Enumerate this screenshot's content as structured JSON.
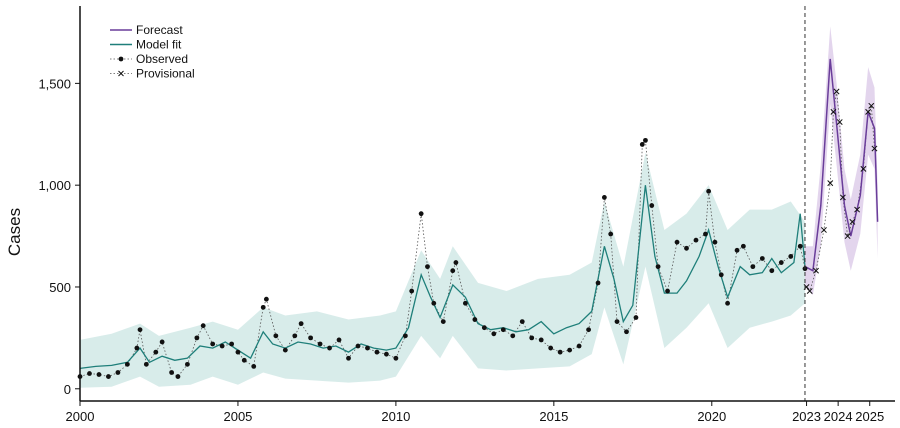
{
  "chart_data": {
    "type": "line",
    "title": "",
    "xlabel": "",
    "ylabel": "Cases",
    "xlim": [
      2000,
      2025.8
    ],
    "ylim": [
      -60,
      1880
    ],
    "x_ticks": [
      2000,
      2005,
      2010,
      2015,
      2020,
      2023,
      2024,
      2025
    ],
    "x_tick_labels": [
      "2000",
      "2005",
      "2010",
      "2015",
      "2020",
      "2023",
      "2024",
      "2025"
    ],
    "y_ticks": [
      0,
      500,
      1000,
      1500
    ],
    "y_tick_labels": [
      "0",
      "500",
      "1,000",
      "1,500"
    ],
    "grid": false,
    "legend_position": "top-left",
    "forecast_start": 2022.95,
    "colors": {
      "model_fit": "#1f7f7a",
      "model_band": "#d6ebe9",
      "forecast": "#6a3d9a",
      "forecast_band": "#e2d3ec",
      "observed": "#111111"
    },
    "legend": [
      {
        "label": "Forecast",
        "key": "forecast"
      },
      {
        "label": "Model fit",
        "key": "model_fit"
      },
      {
        "label": "Observed",
        "key": "observed"
      },
      {
        "label": "Provisional",
        "key": "provisional"
      }
    ],
    "series": [
      {
        "name": "Model fit",
        "points": [
          [
            2000.0,
            100
          ],
          [
            2000.5,
            110
          ],
          [
            2001.0,
            115
          ],
          [
            2001.5,
            130
          ],
          [
            2001.9,
            200
          ],
          [
            2002.2,
            130
          ],
          [
            2002.6,
            160
          ],
          [
            2003.0,
            140
          ],
          [
            2003.4,
            150
          ],
          [
            2003.8,
            210
          ],
          [
            2004.2,
            200
          ],
          [
            2004.6,
            230
          ],
          [
            2005.0,
            190
          ],
          [
            2005.4,
            150
          ],
          [
            2005.8,
            280
          ],
          [
            2006.1,
            220
          ],
          [
            2006.5,
            200
          ],
          [
            2006.9,
            230
          ],
          [
            2007.3,
            220
          ],
          [
            2007.7,
            200
          ],
          [
            2008.1,
            210
          ],
          [
            2008.5,
            180
          ],
          [
            2008.9,
            220
          ],
          [
            2009.3,
            200
          ],
          [
            2009.7,
            190
          ],
          [
            2010.0,
            200
          ],
          [
            2010.4,
            300
          ],
          [
            2010.8,
            560
          ],
          [
            2011.1,
            450
          ],
          [
            2011.4,
            350
          ],
          [
            2011.8,
            510
          ],
          [
            2012.2,
            450
          ],
          [
            2012.6,
            320
          ],
          [
            2013.0,
            290
          ],
          [
            2013.4,
            300
          ],
          [
            2013.8,
            280
          ],
          [
            2014.2,
            290
          ],
          [
            2014.6,
            330
          ],
          [
            2015.0,
            270
          ],
          [
            2015.4,
            300
          ],
          [
            2015.8,
            320
          ],
          [
            2016.2,
            380
          ],
          [
            2016.6,
            700
          ],
          [
            2016.9,
            540
          ],
          [
            2017.2,
            330
          ],
          [
            2017.5,
            410
          ],
          [
            2017.9,
            1000
          ],
          [
            2018.2,
            650
          ],
          [
            2018.5,
            470
          ],
          [
            2018.9,
            470
          ],
          [
            2019.2,
            530
          ],
          [
            2019.6,
            650
          ],
          [
            2019.9,
            780
          ],
          [
            2020.2,
            600
          ],
          [
            2020.5,
            450
          ],
          [
            2020.9,
            600
          ],
          [
            2021.2,
            560
          ],
          [
            2021.6,
            570
          ],
          [
            2021.9,
            640
          ],
          [
            2022.2,
            570
          ],
          [
            2022.6,
            620
          ],
          [
            2022.8,
            860
          ],
          [
            2022.95,
            600
          ]
        ]
      },
      {
        "name": "Observed",
        "points": [
          [
            2000.0,
            60
          ],
          [
            2000.3,
            75
          ],
          [
            2000.6,
            70
          ],
          [
            2000.9,
            60
          ],
          [
            2001.2,
            80
          ],
          [
            2001.5,
            120
          ],
          [
            2001.8,
            200
          ],
          [
            2001.9,
            290
          ],
          [
            2002.1,
            120
          ],
          [
            2002.4,
            180
          ],
          [
            2002.6,
            230
          ],
          [
            2002.9,
            80
          ],
          [
            2003.1,
            60
          ],
          [
            2003.4,
            120
          ],
          [
            2003.7,
            250
          ],
          [
            2003.9,
            310
          ],
          [
            2004.2,
            220
          ],
          [
            2004.5,
            210
          ],
          [
            2004.8,
            220
          ],
          [
            2005.0,
            180
          ],
          [
            2005.2,
            140
          ],
          [
            2005.5,
            110
          ],
          [
            2005.8,
            400
          ],
          [
            2005.9,
            440
          ],
          [
            2006.2,
            260
          ],
          [
            2006.5,
            190
          ],
          [
            2006.8,
            260
          ],
          [
            2007.0,
            320
          ],
          [
            2007.3,
            250
          ],
          [
            2007.6,
            220
          ],
          [
            2007.9,
            200
          ],
          [
            2008.2,
            240
          ],
          [
            2008.5,
            150
          ],
          [
            2008.8,
            210
          ],
          [
            2009.1,
            200
          ],
          [
            2009.4,
            180
          ],
          [
            2009.7,
            170
          ],
          [
            2010.0,
            150
          ],
          [
            2010.3,
            260
          ],
          [
            2010.5,
            480
          ],
          [
            2010.8,
            860
          ],
          [
            2011.0,
            600
          ],
          [
            2011.2,
            420
          ],
          [
            2011.5,
            330
          ],
          [
            2011.8,
            580
          ],
          [
            2011.9,
            620
          ],
          [
            2012.2,
            420
          ],
          [
            2012.5,
            340
          ],
          [
            2012.8,
            300
          ],
          [
            2013.1,
            270
          ],
          [
            2013.4,
            290
          ],
          [
            2013.7,
            260
          ],
          [
            2014.0,
            330
          ],
          [
            2014.3,
            250
          ],
          [
            2014.6,
            240
          ],
          [
            2014.9,
            200
          ],
          [
            2015.2,
            180
          ],
          [
            2015.5,
            190
          ],
          [
            2015.8,
            210
          ],
          [
            2016.1,
            290
          ],
          [
            2016.4,
            520
          ],
          [
            2016.6,
            940
          ],
          [
            2016.8,
            760
          ],
          [
            2017.0,
            330
          ],
          [
            2017.3,
            280
          ],
          [
            2017.6,
            350
          ],
          [
            2017.8,
            1200
          ],
          [
            2017.9,
            1220
          ],
          [
            2018.1,
            900
          ],
          [
            2018.3,
            600
          ],
          [
            2018.6,
            480
          ],
          [
            2018.9,
            720
          ],
          [
            2019.2,
            690
          ],
          [
            2019.5,
            730
          ],
          [
            2019.8,
            760
          ],
          [
            2019.9,
            970
          ],
          [
            2020.1,
            720
          ],
          [
            2020.3,
            560
          ],
          [
            2020.5,
            420
          ],
          [
            2020.8,
            680
          ],
          [
            2021.0,
            700
          ],
          [
            2021.3,
            600
          ],
          [
            2021.6,
            640
          ],
          [
            2021.9,
            580
          ],
          [
            2022.2,
            620
          ],
          [
            2022.5,
            650
          ],
          [
            2022.8,
            700
          ],
          [
            2022.95,
            590
          ]
        ]
      },
      {
        "name": "Forecast",
        "points": [
          [
            2022.95,
            600
          ],
          [
            2023.2,
            580
          ],
          [
            2023.45,
            900
          ],
          [
            2023.75,
            1620
          ],
          [
            2023.95,
            1300
          ],
          [
            2024.2,
            900
          ],
          [
            2024.4,
            750
          ],
          [
            2024.7,
            950
          ],
          [
            2024.95,
            1360
          ],
          [
            2025.15,
            1280
          ],
          [
            2025.25,
            820
          ]
        ]
      },
      {
        "name": "Provisional",
        "points": [
          [
            2023.0,
            500
          ],
          [
            2023.1,
            480
          ],
          [
            2023.3,
            580
          ],
          [
            2023.55,
            780
          ],
          [
            2023.75,
            1010
          ],
          [
            2023.85,
            1360
          ],
          [
            2023.95,
            1460
          ],
          [
            2024.05,
            1310
          ],
          [
            2024.15,
            940
          ],
          [
            2024.3,
            750
          ],
          [
            2024.45,
            820
          ],
          [
            2024.6,
            880
          ],
          [
            2024.8,
            1080
          ],
          [
            2024.95,
            1360
          ],
          [
            2025.05,
            1390
          ],
          [
            2025.15,
            1180
          ]
        ]
      }
    ],
    "bands": [
      {
        "name": "Model fit interval",
        "upper": [
          [
            2000.0,
            240
          ],
          [
            2001.0,
            270
          ],
          [
            2001.9,
            320
          ],
          [
            2002.5,
            260
          ],
          [
            2003.5,
            300
          ],
          [
            2004.2,
            330
          ],
          [
            2005.0,
            290
          ],
          [
            2005.8,
            400
          ],
          [
            2006.5,
            360
          ],
          [
            2007.5,
            380
          ],
          [
            2008.5,
            340
          ],
          [
            2009.5,
            360
          ],
          [
            2010.0,
            380
          ],
          [
            2010.8,
            680
          ],
          [
            2011.4,
            540
          ],
          [
            2011.8,
            700
          ],
          [
            2012.6,
            520
          ],
          [
            2013.5,
            480
          ],
          [
            2014.5,
            540
          ],
          [
            2015.5,
            560
          ],
          [
            2016.2,
            620
          ],
          [
            2016.6,
            920
          ],
          [
            2017.2,
            600
          ],
          [
            2017.9,
            1160
          ],
          [
            2018.5,
            780
          ],
          [
            2019.2,
            860
          ],
          [
            2019.9,
            1000
          ],
          [
            2020.5,
            780
          ],
          [
            2021.2,
            880
          ],
          [
            2021.9,
            880
          ],
          [
            2022.5,
            920
          ],
          [
            2022.95,
            820
          ]
        ],
        "lower": [
          [
            2000.0,
            5
          ],
          [
            2001.0,
            10
          ],
          [
            2001.9,
            60
          ],
          [
            2002.5,
            10
          ],
          [
            2003.5,
            20
          ],
          [
            2004.2,
            60
          ],
          [
            2005.0,
            20
          ],
          [
            2005.8,
            80
          ],
          [
            2006.5,
            50
          ],
          [
            2007.5,
            40
          ],
          [
            2008.5,
            30
          ],
          [
            2009.5,
            40
          ],
          [
            2010.0,
            60
          ],
          [
            2010.8,
            260
          ],
          [
            2011.4,
            150
          ],
          [
            2011.8,
            260
          ],
          [
            2012.6,
            100
          ],
          [
            2013.5,
            90
          ],
          [
            2014.5,
            100
          ],
          [
            2015.5,
            110
          ],
          [
            2016.2,
            170
          ],
          [
            2016.6,
            400
          ],
          [
            2017.2,
            120
          ],
          [
            2017.9,
            600
          ],
          [
            2018.5,
            200
          ],
          [
            2019.2,
            300
          ],
          [
            2019.9,
            420
          ],
          [
            2020.5,
            200
          ],
          [
            2021.2,
            300
          ],
          [
            2021.9,
            330
          ],
          [
            2022.5,
            360
          ],
          [
            2022.95,
            420
          ]
        ]
      },
      {
        "name": "Forecast interval",
        "upper": [
          [
            2022.95,
            700
          ],
          [
            2023.2,
            700
          ],
          [
            2023.45,
            1100
          ],
          [
            2023.75,
            1780
          ],
          [
            2023.95,
            1500
          ],
          [
            2024.2,
            1080
          ],
          [
            2024.4,
            930
          ],
          [
            2024.7,
            1150
          ],
          [
            2024.95,
            1580
          ],
          [
            2025.15,
            1480
          ],
          [
            2025.25,
            1000
          ]
        ],
        "lower": [
          [
            2022.95,
            500
          ],
          [
            2023.2,
            460
          ],
          [
            2023.45,
            700
          ],
          [
            2023.75,
            1400
          ],
          [
            2023.95,
            1100
          ],
          [
            2024.2,
            720
          ],
          [
            2024.4,
            580
          ],
          [
            2024.7,
            760
          ],
          [
            2024.95,
            1150
          ],
          [
            2025.15,
            1080
          ],
          [
            2025.25,
            640
          ]
        ]
      }
    ]
  }
}
